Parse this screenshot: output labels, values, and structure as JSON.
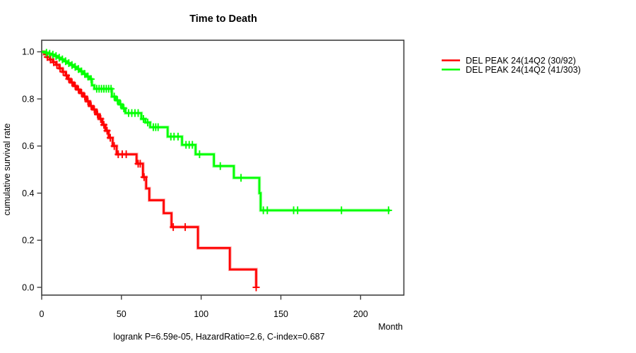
{
  "chart_data": {
    "type": "line",
    "subtype": "kaplan-meier-step",
    "title": "Time to Death",
    "xlabel": "Month",
    "ylabel": "cumulative survival rate",
    "footer": "logrank P=6.59e-05, HazardRatio=2.6, C-index=0.687",
    "xlim": [
      0,
      227
    ],
    "ylim": [
      0.0,
      1.0
    ],
    "xticks": [
      0,
      50,
      100,
      150,
      200
    ],
    "ytick_labels": [
      "0.0",
      "0.2",
      "0.4",
      "0.6",
      "0.8",
      "1.0"
    ],
    "ytick_values": [
      0.0,
      0.2,
      0.4,
      0.6,
      0.8,
      1.0
    ],
    "grid": false,
    "legend_position": "right-outside",
    "axis_color": "#404040",
    "text_color": "#000000",
    "series": [
      {
        "name": "DEL PEAK 24(14Q2 (30/92)",
        "color": "#ff0000",
        "end_month": 134.5,
        "steps": [
          [
            0,
            1.0
          ],
          [
            1.5,
            0.99
          ],
          [
            3,
            0.978
          ],
          [
            5,
            0.967
          ],
          [
            7,
            0.956
          ],
          [
            9,
            0.945
          ],
          [
            11,
            0.93
          ],
          [
            13,
            0.915
          ],
          [
            15,
            0.9
          ],
          [
            16.5,
            0.885
          ],
          [
            18,
            0.87
          ],
          [
            20,
            0.855
          ],
          [
            22,
            0.84
          ],
          [
            24,
            0.825
          ],
          [
            26,
            0.81
          ],
          [
            28,
            0.79
          ],
          [
            30,
            0.77
          ],
          [
            32,
            0.755
          ],
          [
            34,
            0.735
          ],
          [
            36,
            0.715
          ],
          [
            38,
            0.69
          ],
          [
            40,
            0.665
          ],
          [
            42,
            0.635
          ],
          [
            44.5,
            0.6
          ],
          [
            47,
            0.565
          ],
          [
            59.5,
            0.525
          ],
          [
            63.5,
            0.468
          ],
          [
            65.5,
            0.42
          ],
          [
            67.5,
            0.37
          ],
          [
            76.5,
            0.315
          ],
          [
            81.4,
            0.256
          ],
          [
            98,
            0.167
          ],
          [
            118,
            0.076
          ],
          [
            134.5,
            0.0
          ]
        ],
        "censors": [
          [
            3.5,
            0.978
          ],
          [
            5.5,
            0.967
          ],
          [
            7.5,
            0.956
          ],
          [
            9.5,
            0.945
          ],
          [
            11.5,
            0.93
          ],
          [
            13.5,
            0.915
          ],
          [
            15.5,
            0.9
          ],
          [
            17,
            0.885
          ],
          [
            19,
            0.87
          ],
          [
            21,
            0.855
          ],
          [
            23,
            0.84
          ],
          [
            25,
            0.825
          ],
          [
            27,
            0.81
          ],
          [
            29,
            0.79
          ],
          [
            31,
            0.77
          ],
          [
            33,
            0.755
          ],
          [
            35,
            0.735
          ],
          [
            37,
            0.715
          ],
          [
            39,
            0.69
          ],
          [
            41,
            0.665
          ],
          [
            43,
            0.635
          ],
          [
            45.5,
            0.6
          ],
          [
            48,
            0.565
          ],
          [
            50.5,
            0.565
          ],
          [
            53,
            0.565
          ],
          [
            60.5,
            0.525
          ],
          [
            61.8,
            0.525
          ],
          [
            64.2,
            0.468
          ],
          [
            82.5,
            0.256
          ],
          [
            90,
            0.256
          ],
          [
            134.5,
            0.0
          ]
        ]
      },
      {
        "name": "DEL PEAK 24(14Q2 (41/303)",
        "color": "#00ff00",
        "end_month": 218.5,
        "steps": [
          [
            0,
            1.0
          ],
          [
            2,
            0.996
          ],
          [
            4,
            0.992
          ],
          [
            6,
            0.988
          ],
          [
            8,
            0.982
          ],
          [
            10,
            0.975
          ],
          [
            12,
            0.968
          ],
          [
            14,
            0.96
          ],
          [
            16,
            0.952
          ],
          [
            18,
            0.944
          ],
          [
            20,
            0.936
          ],
          [
            22,
            0.927
          ],
          [
            24,
            0.917
          ],
          [
            26,
            0.906
          ],
          [
            28,
            0.895
          ],
          [
            30,
            0.884
          ],
          [
            31.5,
            0.858
          ],
          [
            33,
            0.843
          ],
          [
            44,
            0.81
          ],
          [
            46.5,
            0.794
          ],
          [
            48.5,
            0.777
          ],
          [
            50.5,
            0.76
          ],
          [
            52.5,
            0.74
          ],
          [
            62.5,
            0.715
          ],
          [
            65,
            0.7
          ],
          [
            68,
            0.68
          ],
          [
            79,
            0.64
          ],
          [
            88,
            0.605
          ],
          [
            96.5,
            0.565
          ],
          [
            108,
            0.515
          ],
          [
            120.5,
            0.465
          ],
          [
            136.5,
            0.4
          ],
          [
            137.3,
            0.327
          ]
        ],
        "censors": [
          [
            3,
            0.996
          ],
          [
            5,
            0.992
          ],
          [
            7,
            0.988
          ],
          [
            9,
            0.982
          ],
          [
            11,
            0.975
          ],
          [
            13,
            0.968
          ],
          [
            15,
            0.96
          ],
          [
            17,
            0.952
          ],
          [
            19,
            0.944
          ],
          [
            21,
            0.936
          ],
          [
            23,
            0.927
          ],
          [
            25,
            0.917
          ],
          [
            27,
            0.906
          ],
          [
            29,
            0.895
          ],
          [
            31,
            0.884
          ],
          [
            34.5,
            0.843
          ],
          [
            36,
            0.843
          ],
          [
            37.5,
            0.843
          ],
          [
            39,
            0.843
          ],
          [
            40.5,
            0.843
          ],
          [
            42,
            0.843
          ],
          [
            43.5,
            0.843
          ],
          [
            45.5,
            0.81
          ],
          [
            47.5,
            0.794
          ],
          [
            49.5,
            0.777
          ],
          [
            51.5,
            0.76
          ],
          [
            54.5,
            0.74
          ],
          [
            56.5,
            0.74
          ],
          [
            58.5,
            0.74
          ],
          [
            60.5,
            0.74
          ],
          [
            63.8,
            0.715
          ],
          [
            66.5,
            0.7
          ],
          [
            70,
            0.68
          ],
          [
            71.5,
            0.68
          ],
          [
            73,
            0.68
          ],
          [
            81,
            0.64
          ],
          [
            83,
            0.64
          ],
          [
            85.5,
            0.64
          ],
          [
            90.5,
            0.605
          ],
          [
            92.5,
            0.605
          ],
          [
            94.5,
            0.605
          ],
          [
            99,
            0.565
          ],
          [
            112,
            0.515
          ],
          [
            125,
            0.465
          ],
          [
            139,
            0.327
          ],
          [
            141.5,
            0.327
          ],
          [
            158,
            0.327
          ],
          [
            160.5,
            0.327
          ],
          [
            188,
            0.327
          ],
          [
            217.5,
            0.327
          ]
        ]
      }
    ]
  }
}
